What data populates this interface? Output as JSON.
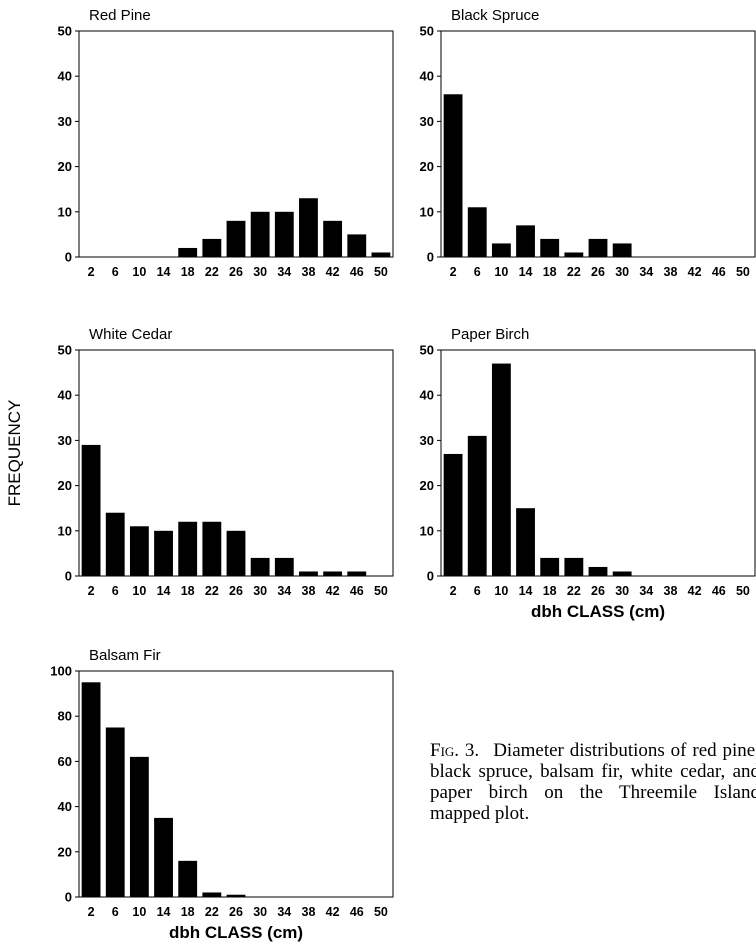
{
  "figure": {
    "y_label": "FREQUENCY",
    "x_label": "dbh CLASS (cm)",
    "caption_label": "Fig. 3.",
    "caption_text": "Diameter distributions of red pine, black spruce, balsam fir, white cedar, and paper birch on the Threemile Island mapped plot."
  },
  "chart_data": [
    {
      "type": "bar",
      "title": "Red Pine",
      "categories": [
        "2",
        "6",
        "10",
        "14",
        "18",
        "22",
        "26",
        "30",
        "34",
        "38",
        "42",
        "46",
        "50"
      ],
      "values": [
        0,
        0,
        0,
        0,
        2,
        4,
        8,
        10,
        10,
        13,
        8,
        5,
        1
      ],
      "ylim": [
        0,
        50
      ],
      "yticks": [
        0,
        10,
        20,
        30,
        40,
        50
      ],
      "xlabel": "",
      "ylabel": "FREQUENCY"
    },
    {
      "type": "bar",
      "title": "Black Spruce",
      "categories": [
        "2",
        "6",
        "10",
        "14",
        "18",
        "22",
        "26",
        "30",
        "34",
        "38",
        "42",
        "46",
        "50"
      ],
      "values": [
        36,
        11,
        3,
        7,
        4,
        1,
        4,
        3,
        0,
        0,
        0,
        0,
        0
      ],
      "ylim": [
        0,
        50
      ],
      "yticks": [
        0,
        10,
        20,
        30,
        40,
        50
      ],
      "xlabel": "",
      "ylabel": "FREQUENCY"
    },
    {
      "type": "bar",
      "title": "White Cedar",
      "categories": [
        "2",
        "6",
        "10",
        "14",
        "18",
        "22",
        "26",
        "30",
        "34",
        "38",
        "42",
        "46",
        "50"
      ],
      "values": [
        29,
        14,
        11,
        10,
        12,
        12,
        10,
        4,
        4,
        1,
        1,
        1,
        0
      ],
      "ylim": [
        0,
        50
      ],
      "yticks": [
        0,
        10,
        20,
        30,
        40,
        50
      ],
      "xlabel": "",
      "ylabel": "FREQUENCY"
    },
    {
      "type": "bar",
      "title": "Paper Birch",
      "categories": [
        "2",
        "6",
        "10",
        "14",
        "18",
        "22",
        "26",
        "30",
        "34",
        "38",
        "42",
        "46",
        "50"
      ],
      "values": [
        27,
        31,
        47,
        15,
        4,
        4,
        2,
        1,
        0,
        0,
        0,
        0,
        0
      ],
      "ylim": [
        0,
        50
      ],
      "yticks": [
        0,
        10,
        20,
        30,
        40,
        50
      ],
      "xlabel": "dbh CLASS (cm)",
      "ylabel": "FREQUENCY"
    },
    {
      "type": "bar",
      "title": "Balsam Fir",
      "categories": [
        "2",
        "6",
        "10",
        "14",
        "18",
        "22",
        "26",
        "30",
        "34",
        "38",
        "42",
        "46",
        "50"
      ],
      "values": [
        95,
        75,
        62,
        35,
        16,
        2,
        1,
        0,
        0,
        0,
        0,
        0,
        0
      ],
      "ylim": [
        0,
        100
      ],
      "yticks": [
        0,
        20,
        40,
        60,
        80,
        100
      ],
      "xlabel": "dbh CLASS (cm)",
      "ylabel": "FREQUENCY"
    }
  ]
}
